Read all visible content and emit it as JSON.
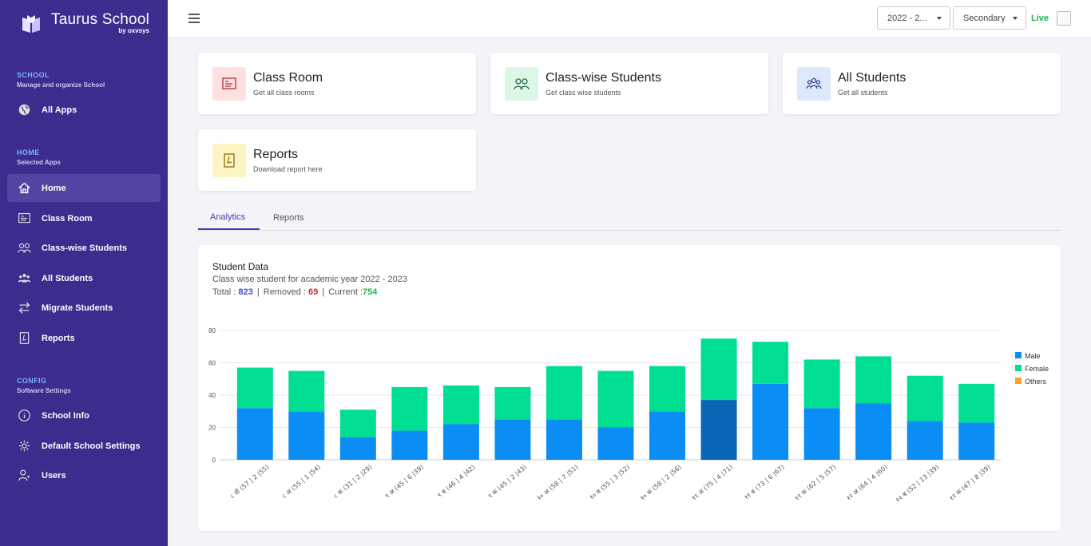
{
  "brand": {
    "name": "Taurus School",
    "by": "by oxvsys"
  },
  "sidebar": {
    "sections": [
      {
        "title": "SCHOOL",
        "subtitle": "Manage and organize School"
      },
      {
        "title": "HOME",
        "subtitle": "Selected Apps"
      },
      {
        "title": "CONFIG",
        "subtitle": "Software Settings"
      }
    ],
    "items": [
      {
        "label": "All Apps",
        "icon": "globe-icon"
      },
      {
        "label": "Home",
        "icon": "home-icon",
        "active": true
      },
      {
        "label": "Class Room",
        "icon": "classroom-icon"
      },
      {
        "label": "Class-wise Students",
        "icon": "students-pair-icon"
      },
      {
        "label": "All Students",
        "icon": "group-icon"
      },
      {
        "label": "Migrate Students",
        "icon": "migrate-arrows-icon"
      },
      {
        "label": "Reports",
        "icon": "pdf-report-icon"
      },
      {
        "label": "School Info",
        "icon": "info-icon"
      },
      {
        "label": "Default School Settings",
        "icon": "gear-icon"
      },
      {
        "label": "Users",
        "icon": "user-icon"
      }
    ]
  },
  "header": {
    "year_select": "2022 - 2...",
    "level_select": "Secondary",
    "live_label": "Live"
  },
  "cards": [
    {
      "title": "Class Room",
      "subtitle": "Get all class rooms",
      "icon": "classroom-icon",
      "color": "#fde0e0"
    },
    {
      "title": "Class-wise Students",
      "subtitle": "Get class wise students",
      "icon": "students-pair-icon",
      "color": "#ddf6e6"
    },
    {
      "title": "All Students",
      "subtitle": "Get all students",
      "icon": "group-icon",
      "color": "#dde8fb"
    },
    {
      "title": "Reports",
      "subtitle": "Download report here",
      "icon": "pdf-report-icon",
      "color": "#fdf4c4"
    }
  ],
  "tabs": [
    {
      "label": "Analytics",
      "active": true
    },
    {
      "label": "Reports",
      "active": false
    }
  ],
  "panel": {
    "title": "Student Data",
    "subtitle": "Class wise student for academic year 2022 - 2023",
    "total_label": "Total : ",
    "total": "823",
    "removed_label": "Removed : ",
    "removed": "69",
    "current_label": "Current :",
    "current": "754"
  },
  "colors": {
    "male": "#0a8ef5",
    "male_highlight": "#0866b8",
    "female": "#00df91",
    "others": "#f5a623",
    "sidebar": "#3d2b8e"
  },
  "chart_data": {
    "type": "bar",
    "stacked": true,
    "categories": [
      "८ वी (57 | 2 |55)",
      "८ अ (55 | 1 |54)",
      "८ क (31 | 2 |29)",
      "९ अ (45 | 6 |39)",
      "९ ब (46 | 4 |42)",
      "९ क (45 | 2 |43)",
      "१० अ (58 | 7 |51)",
      "१० ब (55 | 3 |52)",
      "१० क (58 | 2 |56)",
      "११ अ (75 | 4 |71)",
      "११ ब (73 | 6 |67)",
      "११ क (62 | 5 |57)",
      "१२ अ (64 | 4 |60)",
      "१२ ब (52 | 13 |39)",
      "१२ क (47 | 8 |39)"
    ],
    "series": [
      {
        "name": "Male",
        "values": [
          32,
          30,
          14,
          18,
          22,
          25,
          25,
          20,
          30,
          37,
          47,
          32,
          35,
          24,
          23
        ]
      },
      {
        "name": "Female",
        "values": [
          25,
          25,
          17,
          27,
          24,
          20,
          33,
          35,
          28,
          38,
          26,
          30,
          29,
          28,
          24
        ]
      },
      {
        "name": "Others",
        "values": [
          0,
          0,
          0,
          0,
          0,
          0,
          0,
          0,
          0,
          0,
          0,
          0,
          0,
          0,
          0
        ]
      }
    ],
    "highlighted_index": 9,
    "yticks": [
      0,
      20,
      40,
      60,
      80
    ],
    "ylim": [
      0,
      80
    ],
    "grid": true,
    "legend": "right"
  }
}
